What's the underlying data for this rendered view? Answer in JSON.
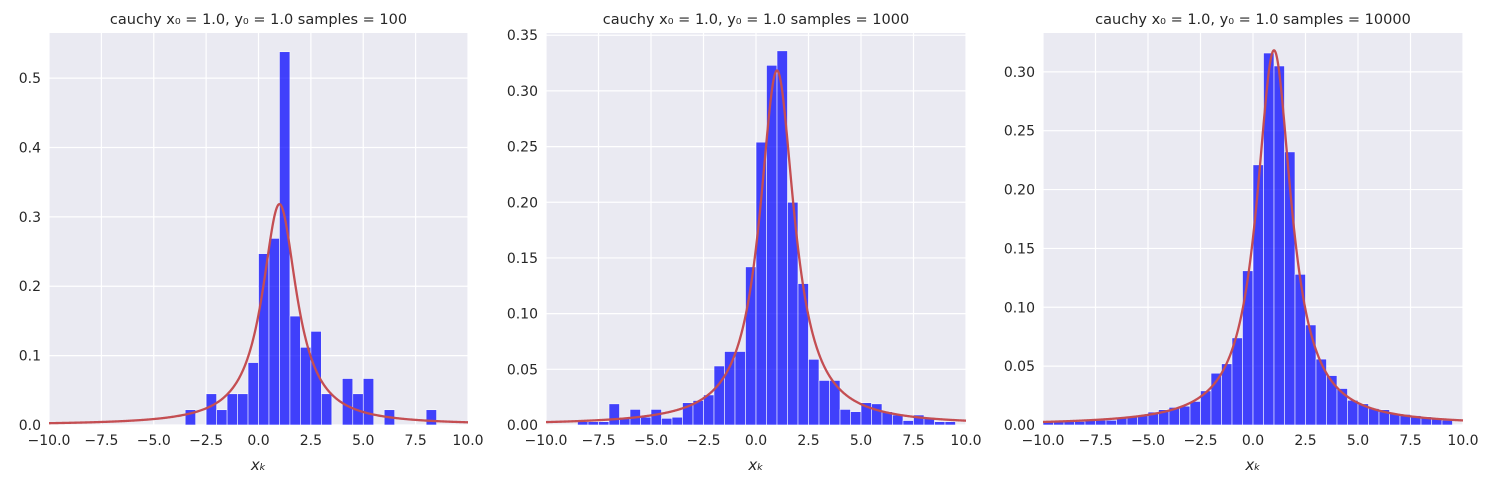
{
  "colors": {
    "bars": "#0000ff",
    "curve": "#c44e52",
    "axes_bg": "#eaeaf2",
    "grid": "#ffffff"
  },
  "chart_data": [
    {
      "type": "bar",
      "title": "cauchy x₀ = 1.0, y₀ = 1.0  samples = 100",
      "xlabel": "xₖ",
      "ylabel": "",
      "xlim": [
        -10,
        10
      ],
      "ylim": [
        0,
        0.565
      ],
      "xticks": [
        "−10.0",
        "−7.5",
        "−5.0",
        "−2.5",
        "0.0",
        "2.5",
        "5.0",
        "7.5",
        "10.0"
      ],
      "xtick_values": [
        -10,
        -7.5,
        -5,
        -2.5,
        0,
        2.5,
        5,
        7.5,
        10
      ],
      "yticks": [
        "0.0",
        "0.1",
        "0.2",
        "0.3",
        "0.4",
        "0.5"
      ],
      "ytick_values": [
        0,
        0.1,
        0.2,
        0.3,
        0.4,
        0.5
      ],
      "grid": true,
      "bin_edges": [
        -3.5,
        -3.0,
        -2.5,
        -2.0,
        -1.5,
        -1.0,
        -0.5,
        0.0,
        0.5,
        1.0,
        1.5,
        2.0,
        2.5,
        3.0,
        3.5,
        4.0,
        4.5,
        5.0,
        5.5,
        6.0,
        6.5,
        7.0,
        7.5,
        8.0,
        8.5
      ],
      "values": [
        0.022,
        0,
        0.045,
        0.022,
        0.045,
        0.045,
        0.09,
        0.247,
        0.269,
        0.538,
        0.157,
        0.112,
        0.135,
        0.045,
        0,
        0.067,
        0.045,
        0.067,
        0,
        0.022,
        0,
        0,
        0,
        0.022
      ],
      "curve": {
        "x0": 1.0,
        "gamma": 1.0,
        "x_range": [
          -10,
          10
        ]
      }
    },
    {
      "type": "bar",
      "title": "cauchy x₀ = 1.0, y₀ = 1.0  samples = 1000",
      "xlabel": "xₖ",
      "ylabel": "",
      "xlim": [
        -10,
        10
      ],
      "ylim": [
        0,
        0.352
      ],
      "xticks": [
        "−10.0",
        "−7.5",
        "−5.0",
        "−2.5",
        "0.0",
        "2.5",
        "5.0",
        "7.5",
        "10.0"
      ],
      "xtick_values": [
        -10,
        -7.5,
        -5,
        -2.5,
        0,
        2.5,
        5,
        7.5,
        10
      ],
      "yticks": [
        "0.00",
        "0.05",
        "0.10",
        "0.15",
        "0.20",
        "0.25",
        "0.30",
        "0.35"
      ],
      "ytick_values": [
        0,
        0.05,
        0.1,
        0.15,
        0.2,
        0.25,
        0.3,
        0.35
      ],
      "grid": true,
      "bin_edges": [
        -8.5,
        -8.0,
        -7.5,
        -7.0,
        -6.5,
        -6.0,
        -5.5,
        -5.0,
        -4.5,
        -4.0,
        -3.5,
        -3.0,
        -2.5,
        -2.0,
        -1.5,
        -1.0,
        -0.5,
        0.0,
        0.5,
        1.0,
        1.5,
        2.0,
        2.5,
        3.0,
        3.5,
        4.0,
        4.5,
        5.0,
        5.5,
        6.0,
        6.5,
        7.0,
        7.5,
        8.0,
        8.5,
        9.0,
        9.5
      ],
      "values": [
        0.003,
        0.003,
        0.003,
        0.019,
        0.007,
        0.014,
        0.007,
        0.014,
        0.006,
        0.007,
        0.02,
        0.022,
        0.027,
        0.053,
        0.066,
        0.066,
        0.142,
        0.254,
        0.323,
        0.336,
        0.2,
        0.127,
        0.059,
        0.04,
        0.04,
        0.014,
        0.012,
        0.02,
        0.019,
        0.012,
        0.009,
        0.004,
        0.009,
        0.006,
        0.003,
        0.003
      ],
      "curve": {
        "x0": 1.0,
        "gamma": 1.0,
        "x_range": [
          -10,
          10
        ]
      }
    },
    {
      "type": "bar",
      "title": "cauchy x₀ = 1.0, y₀ = 1.0  samples = 10000",
      "xlabel": "xₖ",
      "ylabel": "",
      "xlim": [
        -10,
        10
      ],
      "ylim": [
        0,
        0.333
      ],
      "xticks": [
        "−10.0",
        "−7.5",
        "−5.0",
        "−2.5",
        "0.0",
        "2.5",
        "5.0",
        "7.5",
        "10.0"
      ],
      "xtick_values": [
        -10,
        -7.5,
        -5,
        -2.5,
        0,
        2.5,
        5,
        7.5,
        10
      ],
      "yticks": [
        "0.00",
        "0.05",
        "0.10",
        "0.15",
        "0.20",
        "0.25",
        "0.30"
      ],
      "ytick_values": [
        0,
        0.05,
        0.1,
        0.15,
        0.2,
        0.25,
        0.3
      ],
      "grid": true,
      "bin_edges": [
        -10.0,
        -9.5,
        -9.0,
        -8.5,
        -8.0,
        -7.5,
        -7.0,
        -6.5,
        -6.0,
        -5.5,
        -5.0,
        -4.5,
        -4.0,
        -3.5,
        -3.0,
        -2.5,
        -2.0,
        -1.5,
        -1.0,
        -0.5,
        0.0,
        0.5,
        1.0,
        1.5,
        2.0,
        2.5,
        3.0,
        3.5,
        4.0,
        4.5,
        5.0,
        5.5,
        6.0,
        6.5,
        7.0,
        7.5,
        8.0,
        8.5,
        9.0,
        9.5
      ],
      "values": [
        0.003,
        0.003,
        0.003,
        0.003,
        0.004,
        0.004,
        0.004,
        0.006,
        0.007,
        0.008,
        0.011,
        0.013,
        0.015,
        0.016,
        0.02,
        0.029,
        0.044,
        0.052,
        0.074,
        0.131,
        0.221,
        0.316,
        0.305,
        0.232,
        0.128,
        0.085,
        0.056,
        0.042,
        0.031,
        0.021,
        0.018,
        0.014,
        0.013,
        0.01,
        0.009,
        0.008,
        0.007,
        0.006,
        0.004
      ],
      "curve": {
        "x0": 1.0,
        "gamma": 1.0,
        "x_range": [
          -10,
          10
        ]
      }
    }
  ]
}
